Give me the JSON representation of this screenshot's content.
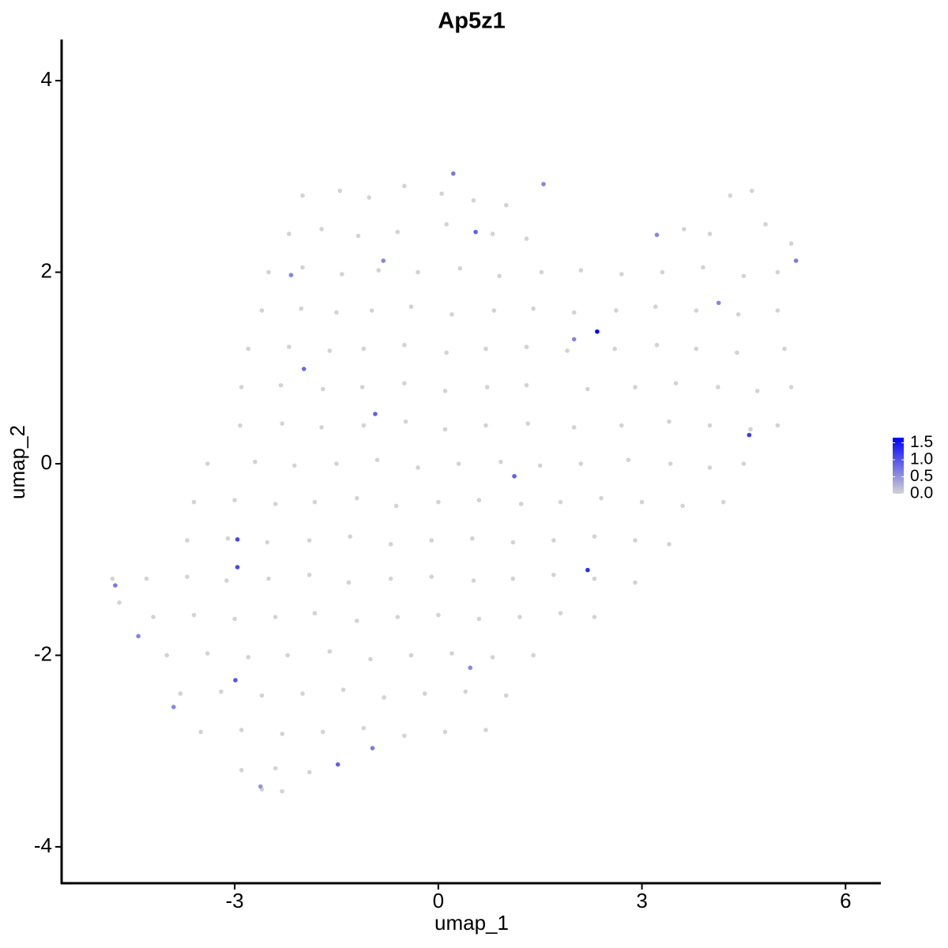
{
  "chart_data": {
    "type": "scatter",
    "title": "Ap5z1",
    "x_label": "umap_1",
    "y_label": "umap_2",
    "xlim": [
      -5.55,
      6.52
    ],
    "ylim": [
      -4.38,
      4.43
    ],
    "xticks": [
      -3,
      0,
      3,
      6
    ],
    "yticks": [
      -4,
      -2,
      0,
      2,
      4
    ],
    "color_low": "#d3d3d3",
    "color_high": "#0000ff",
    "colorbar_lim": [
      0,
      1.65
    ],
    "colorbar_ticks": [
      {
        "value": 0,
        "label": "0.0"
      },
      {
        "value": 0.5,
        "label": "0.5"
      },
      {
        "value": 1,
        "label": "1.0"
      },
      {
        "value": 1.5,
        "label": "1.5"
      }
    ],
    "x": [
      -2.0,
      -1.45,
      -1.02,
      -0.5,
      0.05,
      0.52,
      1.0,
      4.3,
      4.62,
      -2.2,
      -1.72,
      -1.18,
      -0.6,
      0.12,
      0.8,
      1.3,
      3.62,
      4.0,
      4.82,
      5.2,
      -2.5,
      -2.0,
      -1.42,
      -0.88,
      -0.3,
      0.32,
      0.9,
      1.52,
      2.1,
      2.7,
      3.3,
      3.9,
      4.5,
      5.0,
      -2.6,
      -2.02,
      -1.5,
      -0.98,
      -0.4,
      0.2,
      0.82,
      1.4,
      2.0,
      2.62,
      3.2,
      3.8,
      4.42,
      5.0,
      -2.8,
      -2.2,
      -1.6,
      -1.1,
      -0.5,
      0.12,
      0.7,
      1.3,
      1.9,
      2.6,
      3.22,
      3.8,
      4.4,
      5.1,
      -2.9,
      -2.32,
      -1.7,
      -1.12,
      -0.5,
      0.1,
      0.72,
      1.3,
      2.2,
      2.9,
      3.5,
      4.12,
      4.7,
      5.2,
      -2.92,
      -2.3,
      -1.72,
      -1.1,
      -0.48,
      0.1,
      0.7,
      1.32,
      2.0,
      2.7,
      3.4,
      4.0,
      4.6,
      5.0,
      -3.4,
      -2.7,
      -2.12,
      -1.5,
      -0.9,
      -0.3,
      0.3,
      0.92,
      1.5,
      2.1,
      2.8,
      3.42,
      4.0,
      4.5,
      -3.6,
      -3.0,
      -2.4,
      -1.82,
      -1.2,
      -0.62,
      0.0,
      0.6,
      1.22,
      1.8,
      2.4,
      3.0,
      3.6,
      4.2,
      -3.7,
      -3.1,
      -2.52,
      -1.9,
      -1.3,
      -0.7,
      -0.1,
      0.5,
      1.1,
      1.7,
      2.3,
      2.9,
      3.4,
      -4.3,
      -3.7,
      -3.12,
      -2.5,
      -1.9,
      -1.32,
      -0.7,
      -0.1,
      0.52,
      1.1,
      1.7,
      2.3,
      2.9,
      -4.2,
      -3.6,
      -3.0,
      -2.4,
      -1.82,
      -1.2,
      -0.6,
      0.0,
      0.6,
      1.2,
      1.8,
      2.3,
      -4.0,
      -3.4,
      -2.8,
      -2.22,
      -1.6,
      -1.0,
      -0.4,
      0.2,
      0.8,
      1.4,
      -3.8,
      -3.2,
      -2.6,
      -2.0,
      -1.4,
      -0.8,
      -0.2,
      0.4,
      1.0,
      -3.5,
      -2.9,
      -2.3,
      -1.7,
      -1.1,
      -0.5,
      0.1,
      0.7,
      -2.9,
      -2.4,
      -1.9,
      -2.6,
      -2.3,
      -4.8,
      -4.7,
      2.34,
      2.2,
      4.58,
      -2.96,
      -2.96,
      -2.99,
      -4.76,
      0.55,
      -0.93,
      1.12,
      -1.48,
      -1.98,
      1.55,
      5.27,
      -4.42,
      -2.62,
      -0.97,
      0.22,
      3.22,
      4.13,
      0.47,
      -3.9,
      -2.17,
      -0.81,
      2.0
    ],
    "y": [
      2.8,
      2.85,
      2.78,
      2.9,
      2.82,
      2.75,
      2.7,
      2.8,
      2.85,
      2.4,
      2.45,
      2.38,
      2.42,
      2.5,
      2.4,
      2.35,
      2.45,
      2.4,
      2.5,
      2.3,
      2.0,
      2.05,
      1.98,
      2.02,
      2.0,
      2.04,
      1.96,
      2.0,
      2.02,
      1.98,
      2.0,
      2.05,
      1.96,
      2.0,
      1.6,
      1.62,
      1.58,
      1.6,
      1.64,
      1.56,
      1.6,
      1.62,
      1.58,
      1.6,
      1.64,
      1.6,
      1.56,
      1.6,
      1.2,
      1.22,
      1.18,
      1.2,
      1.24,
      1.16,
      1.2,
      1.22,
      1.18,
      1.2,
      1.24,
      1.2,
      1.16,
      1.2,
      0.8,
      0.82,
      0.78,
      0.8,
      0.84,
      0.76,
      0.8,
      0.82,
      0.78,
      0.8,
      0.84,
      0.8,
      0.76,
      0.8,
      0.4,
      0.42,
      0.38,
      0.4,
      0.44,
      0.36,
      0.4,
      0.42,
      0.38,
      0.4,
      0.44,
      0.4,
      0.36,
      0.4,
      0.0,
      0.02,
      -0.02,
      0.0,
      0.04,
      -0.04,
      0.0,
      0.02,
      -0.02,
      0.0,
      0.04,
      0.0,
      -0.04,
      0.0,
      -0.4,
      -0.38,
      -0.42,
      -0.4,
      -0.36,
      -0.44,
      -0.4,
      -0.38,
      -0.42,
      -0.4,
      -0.36,
      -0.4,
      -0.44,
      -0.4,
      -0.8,
      -0.78,
      -0.82,
      -0.8,
      -0.76,
      -0.84,
      -0.8,
      -0.78,
      -0.82,
      -0.8,
      -0.76,
      -0.8,
      -0.84,
      -1.2,
      -1.18,
      -1.22,
      -1.2,
      -1.16,
      -1.24,
      -1.2,
      -1.18,
      -1.22,
      -1.2,
      -1.16,
      -1.2,
      -1.24,
      -1.6,
      -1.58,
      -1.62,
      -1.6,
      -1.56,
      -1.64,
      -1.6,
      -1.58,
      -1.62,
      -1.6,
      -1.56,
      -1.6,
      -2.0,
      -1.98,
      -2.02,
      -2.0,
      -1.96,
      -2.04,
      -2.0,
      -1.98,
      -2.02,
      -2.0,
      -2.4,
      -2.38,
      -2.42,
      -2.4,
      -2.36,
      -2.44,
      -2.4,
      -2.38,
      -2.42,
      -2.8,
      -2.78,
      -2.82,
      -2.8,
      -2.76,
      -2.84,
      -2.8,
      -2.78,
      -3.2,
      -3.18,
      -3.22,
      -3.4,
      -3.42,
      -1.2,
      -1.45,
      1.38,
      -1.11,
      0.3,
      -0.79,
      -1.08,
      -2.26,
      -1.27,
      2.42,
      0.52,
      -0.13,
      -3.14,
      0.99,
      2.92,
      2.12,
      -1.8,
      -3.37,
      -2.97,
      3.03,
      2.39,
      1.68,
      -2.13,
      -2.54,
      1.97,
      2.12,
      1.3
    ],
    "values": [
      0,
      0,
      0,
      0,
      0,
      0,
      0,
      0,
      0,
      0,
      0,
      0,
      0,
      0,
      0,
      0,
      0,
      0,
      0,
      0,
      0,
      0,
      0,
      0,
      0,
      0,
      0,
      0,
      0,
      0,
      0,
      0,
      0,
      0,
      0,
      0,
      0,
      0,
      0,
      0,
      0,
      0,
      0,
      0,
      0,
      0,
      0,
      0,
      0,
      0,
      0,
      0,
      0,
      0,
      0,
      0,
      0,
      0,
      0,
      0,
      0,
      0,
      0,
      0,
      0,
      0,
      0,
      0,
      0,
      0,
      0,
      0,
      0,
      0,
      0,
      0,
      0,
      0,
      0,
      0,
      0,
      0,
      0,
      0,
      0,
      0,
      0,
      0,
      0,
      0,
      0,
      0,
      0,
      0,
      0,
      0,
      0,
      0,
      0,
      0,
      0,
      0,
      0,
      0,
      0,
      0,
      0,
      0,
      0,
      0,
      0,
      0,
      0,
      0,
      0,
      0,
      0,
      0,
      0,
      0,
      0,
      0,
      0,
      0,
      0,
      0,
      0,
      0,
      0,
      0,
      0,
      0,
      0,
      0,
      0,
      0,
      0,
      0,
      0,
      0,
      0,
      0,
      0,
      0,
      0,
      0,
      0,
      0,
      0,
      0,
      0,
      0,
      0,
      0,
      0,
      0,
      0,
      0,
      0,
      0,
      0,
      0,
      0,
      0,
      0,
      0,
      0,
      0,
      0,
      0,
      0,
      0,
      0,
      0,
      0,
      0,
      0,
      0,
      0,
      0,
      0,
      0,
      0,
      0,
      0,
      0,
      0,
      0,
      0,
      0,
      1.65,
      1.3,
      1.2,
      1.1,
      1.1,
      1.0,
      0.7,
      0.9,
      0.9,
      0.9,
      0.9,
      0.8,
      0.6,
      0.7,
      0.6,
      0.5,
      0.7,
      0.7,
      0.6,
      0.6,
      0.6,
      0.6,
      0.6,
      0.6,
      0.6
    ]
  }
}
